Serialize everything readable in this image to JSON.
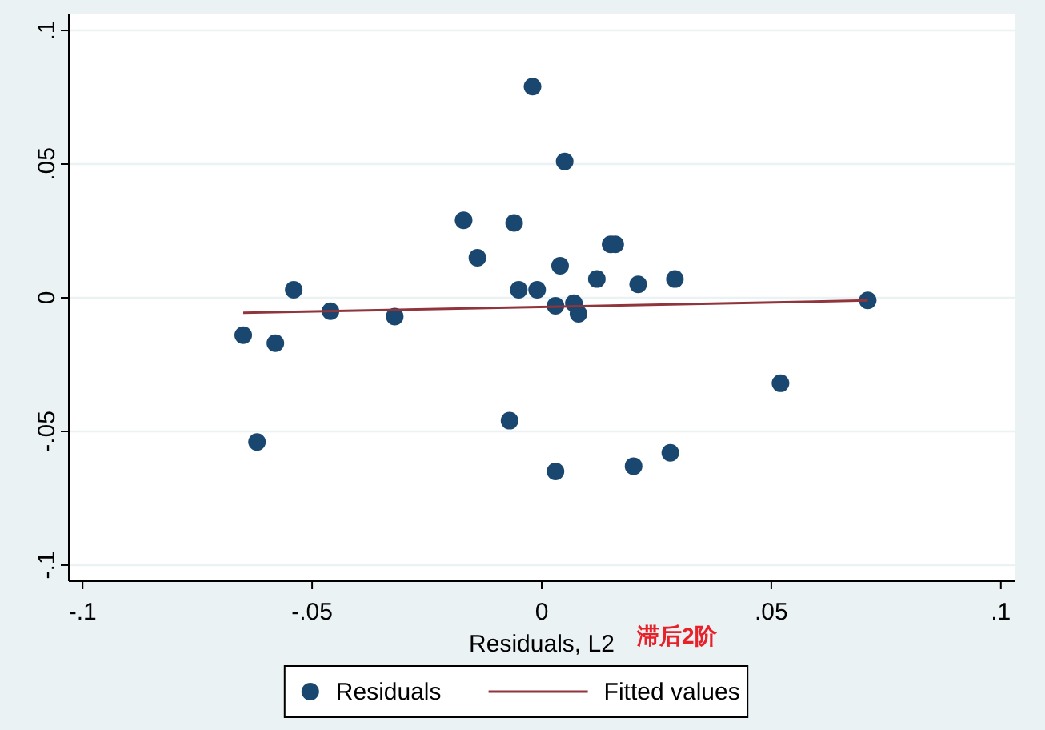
{
  "chart_data": {
    "type": "scatter",
    "xlabel": "Residuals, L2",
    "annotations": [
      "滞后2阶"
    ],
    "xlim": [
      -0.103,
      0.103
    ],
    "ylim": [
      -0.106,
      0.106
    ],
    "xticks": [
      {
        "value": -0.1,
        "label": "-.1"
      },
      {
        "value": -0.05,
        "label": "-.05"
      },
      0,
      {
        "value": 0.05,
        "label": ".05"
      },
      {
        "value": 0.1,
        "label": ".1"
      }
    ],
    "yticks": [
      {
        "value": -0.1,
        "label": "-.1"
      },
      {
        "value": -0.05,
        "label": "-.05"
      },
      0,
      {
        "value": 0.05,
        "label": ".05"
      },
      {
        "value": 0.1,
        "label": ".1"
      }
    ],
    "grid": "y",
    "legend": "bottom",
    "series": [
      {
        "name": "Residuals",
        "color": "#1a476f",
        "marker": "circle",
        "x": [
          -0.065,
          -0.062,
          -0.058,
          -0.054,
          -0.046,
          -0.032,
          -0.017,
          -0.014,
          -0.006,
          -0.007,
          -0.005,
          -0.002,
          -0.001,
          0.005,
          0.004,
          0.003,
          0.003,
          0.007,
          0.008,
          0.012,
          0.015,
          0.016,
          0.021,
          0.02,
          0.029,
          0.028,
          0.052,
          0.071
        ],
        "values": [
          -0.014,
          -0.054,
          -0.017,
          0.003,
          -0.005,
          -0.007,
          0.029,
          0.015,
          0.028,
          -0.046,
          0.003,
          0.079,
          0.003,
          0.051,
          0.012,
          -0.003,
          -0.065,
          -0.002,
          -0.006,
          0.007,
          0.02,
          0.02,
          0.005,
          -0.063,
          0.007,
          -0.058,
          -0.032,
          -0.001
        ]
      },
      {
        "name": "Fitted values",
        "type": "line",
        "color": "#90353b",
        "line_style": "solid",
        "x": [
          -0.065,
          0.071
        ],
        "values": [
          -0.0056,
          -0.001
        ]
      }
    ]
  }
}
